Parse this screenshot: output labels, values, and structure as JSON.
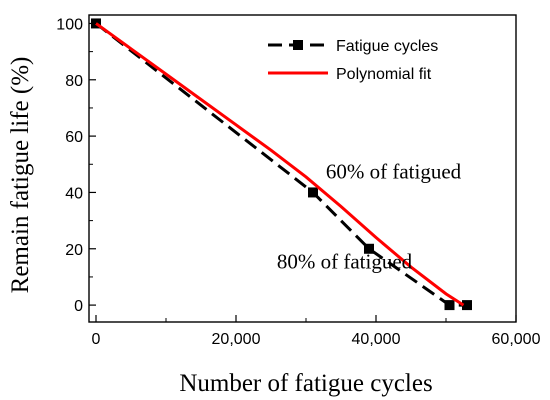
{
  "chart_data": {
    "type": "line",
    "title": "",
    "xlabel": "Number of fatigue cycles",
    "ylabel": "Remain fatigue life (%)",
    "xlim": [
      -1000,
      60000
    ],
    "ylim": [
      -6,
      103
    ],
    "x_ticks": [
      0,
      20000,
      40000,
      60000
    ],
    "x_tick_labels": [
      "0",
      "20,000",
      "40,000",
      "60,000"
    ],
    "y_ticks": [
      0,
      20,
      40,
      60,
      80,
      100
    ],
    "y_tick_labels": [
      "0",
      "20",
      "40",
      "60",
      "80",
      "100"
    ],
    "grid": false,
    "legend_position": "top-right",
    "series": [
      {
        "name": "Fatigue cycles",
        "style": "dashed-with-square-markers",
        "color": "#000000",
        "x": [
          0,
          31000,
          39000,
          50500,
          53000
        ],
        "y": [
          100,
          40,
          20,
          0,
          0
        ]
      },
      {
        "name": "Polynomial fit",
        "style": "solid",
        "color": "#ff0000",
        "x": [
          0,
          5000,
          10000,
          15000,
          20000,
          25000,
          30000,
          35000,
          40000,
          45000,
          50000,
          52500
        ],
        "y": [
          100,
          91,
          82,
          73,
          64,
          55,
          45.5,
          35,
          24,
          13.5,
          4,
          0
        ]
      }
    ],
    "annotations": [
      {
        "text": "60% of fatigued",
        "x": 42500,
        "y": 45
      },
      {
        "text": "80% of fatigued",
        "x": 35500,
        "y": 13
      }
    ]
  }
}
